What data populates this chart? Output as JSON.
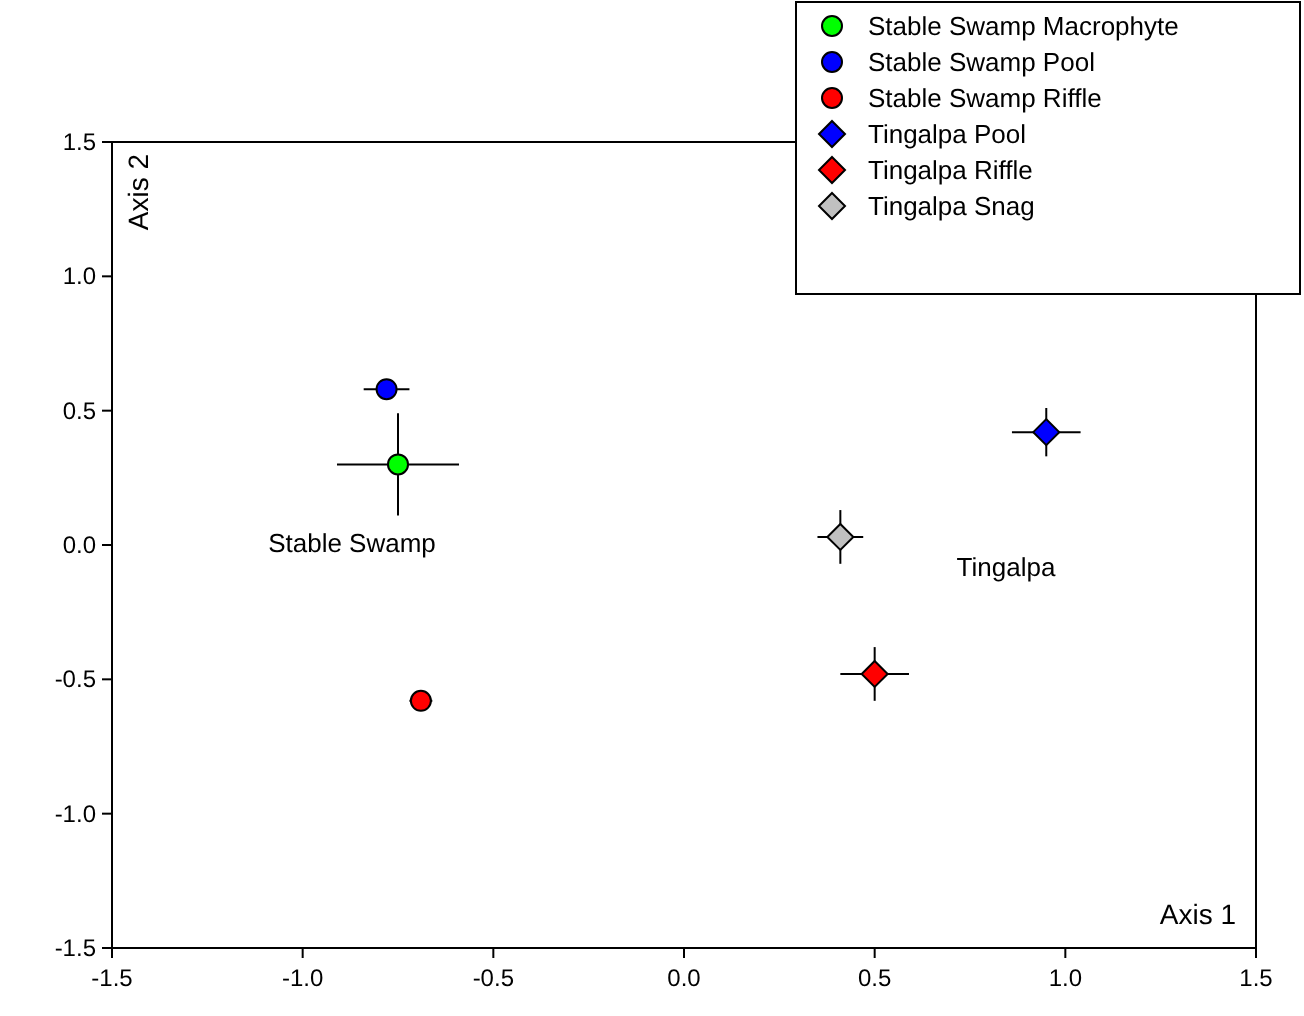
{
  "chart_data": {
    "type": "scatter",
    "xlabel": "Axis 1",
    "ylabel": "Axis 2",
    "xlim": [
      -1.5,
      1.5
    ],
    "ylim": [
      -1.5,
      1.5
    ],
    "xticks": [
      {
        "value": -1.5,
        "label": "-1.5"
      },
      {
        "value": -1,
        "label": "-1.0"
      },
      {
        "value": -0.5,
        "label": "-0.5"
      },
      {
        "value": 0,
        "label": "0.0"
      },
      {
        "value": 0.5,
        "label": "0.5"
      },
      {
        "value": 1,
        "label": "1.0"
      },
      {
        "value": 1.5,
        "label": "1.5"
      }
    ],
    "yticks": [
      {
        "value": -1.5,
        "label": "-1.5"
      },
      {
        "value": -1,
        "label": "-1.0"
      },
      {
        "value": -0.5,
        "label": "-0.5"
      },
      {
        "value": 0,
        "label": "0.0"
      },
      {
        "value": 0.5,
        "label": "0.5"
      },
      {
        "value": 1,
        "label": "1.0"
      },
      {
        "value": 1.5,
        "label": "1.5"
      }
    ],
    "grid": false,
    "legend": "top right",
    "series": [
      {
        "name": "Stable Swamp Macrophyte",
        "color": "#00ff00",
        "marker": "circle",
        "x": [
          -0.75
        ],
        "values": [
          0.3
        ],
        "errors": [
          0.19
        ],
        "xerrors": [
          0.16
        ]
      },
      {
        "name": "Stable Swamp Pool",
        "color": "#0000ff",
        "marker": "circle",
        "x": [
          -0.78
        ],
        "values": [
          0.58
        ],
        "errors": [
          0.03
        ],
        "xerrors": [
          0.06
        ]
      },
      {
        "name": "Stable Swamp Riffle",
        "color": "#ff0000",
        "marker": "circle",
        "x": [
          -0.69
        ],
        "values": [
          -0.58
        ],
        "errors": [
          0.02
        ],
        "xerrors": [
          0.03
        ]
      },
      {
        "name": "Tingalpa Pool",
        "color": "#0000ff",
        "marker": "diamond",
        "x": [
          0.95
        ],
        "values": [
          0.42
        ],
        "errors": [
          0.09
        ],
        "xerrors": [
          0.09
        ]
      },
      {
        "name": "Tingalpa Riffle",
        "color": "#ff0000",
        "marker": "diamond",
        "x": [
          0.5
        ],
        "values": [
          -0.48
        ],
        "errors": [
          0.1
        ],
        "xerrors": [
          0.09
        ]
      },
      {
        "name": "Tingalpa Snag",
        "color": "#c0c0c0",
        "marker": "diamond",
        "x": [
          0.41
        ],
        "values": [
          0.03
        ],
        "errors": [
          0.1
        ],
        "xerrors": [
          0.06
        ]
      }
    ],
    "annotations": [
      "Stable Swamp",
      "Tingalpa"
    ]
  }
}
